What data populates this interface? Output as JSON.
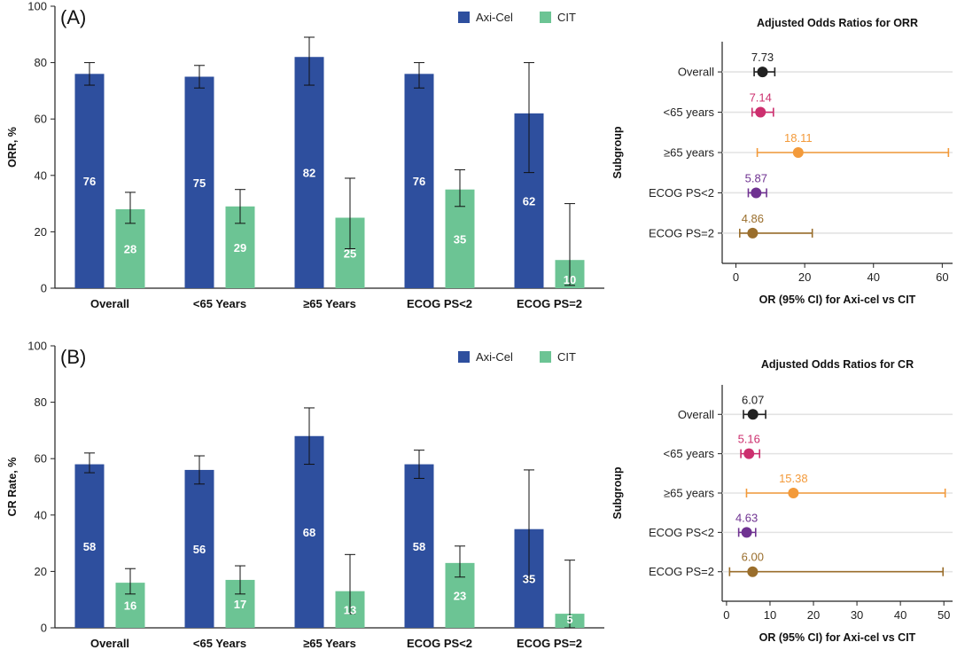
{
  "colors": {
    "axicel": "#2e4f9e",
    "cit": "#6cc494",
    "subgroups": [
      "#222222",
      "#cc2f6e",
      "#f39a3a",
      "#6f3291",
      "#9a6e2c"
    ]
  },
  "chart_data": [
    {
      "type": "bar",
      "panel_label": "(A)",
      "ylabel": "ORR, %",
      "ylim": [
        0,
        100
      ],
      "yticks": [
        0,
        20,
        40,
        60,
        80,
        100
      ],
      "categories": [
        "Overall",
        "<65 Years",
        "≥65 Years",
        "ECOG PS<2",
        "ECOG PS=2"
      ],
      "series": [
        {
          "name": "Axi-Cel",
          "values": [
            76,
            75,
            82,
            76,
            62
          ],
          "ci_low": [
            72,
            71,
            72,
            71,
            41
          ],
          "ci_high": [
            80,
            79,
            89,
            80,
            80
          ]
        },
        {
          "name": "CIT",
          "values": [
            28,
            29,
            25,
            35,
            10
          ],
          "ci_low": [
            23,
            23,
            14,
            29,
            1
          ],
          "ci_high": [
            34,
            35,
            39,
            42,
            30
          ]
        }
      ],
      "legend": "top-right"
    },
    {
      "type": "scatter",
      "title": "Adjusted Odds Ratios for ORR",
      "xlabel": "OR (95% CI) for Axi-cel vs CIT",
      "ylabel": "Subgroup",
      "xlim": [
        -4,
        63
      ],
      "xticks": [
        0,
        20,
        40,
        60
      ],
      "categories": [
        "Overall",
        "<65 years",
        "≥65 years",
        "ECOG PS<2",
        "ECOG PS=2"
      ],
      "values": [
        7.73,
        7.14,
        18.11,
        5.87,
        4.86
      ],
      "value_labels": [
        "7.73",
        "7.14",
        "18.11",
        "5.87",
        "4.86"
      ],
      "ci_low": [
        5.3,
        4.7,
        6.2,
        3.6,
        1.1
      ],
      "ci_high": [
        11.3,
        10.9,
        61.8,
        8.9,
        22.2
      ]
    },
    {
      "type": "bar",
      "panel_label": "(B)",
      "ylabel": "CR Rate, %",
      "ylim": [
        0,
        100
      ],
      "yticks": [
        0,
        20,
        40,
        60,
        80,
        100
      ],
      "categories": [
        "Overall",
        "<65 Years",
        "≥65 Years",
        "ECOG PS<2",
        "ECOG PS=2"
      ],
      "series": [
        {
          "name": "Axi-Cel",
          "values": [
            58,
            56,
            68,
            58,
            35
          ],
          "ci_low": [
            55,
            51,
            58,
            53,
            17
          ],
          "ci_high": [
            62,
            61,
            78,
            63,
            56
          ]
        },
        {
          "name": "CIT",
          "values": [
            16,
            17,
            13,
            23,
            5
          ],
          "ci_low": [
            12,
            12,
            5,
            18,
            0
          ],
          "ci_high": [
            21,
            22,
            26,
            29,
            24
          ]
        }
      ],
      "legend": "top-right"
    },
    {
      "type": "scatter",
      "title": "Adjusted Odds Ratios for CR",
      "xlabel": "OR (95% CI) for Axi-cel vs CIT",
      "ylabel": "Subgroup",
      "xlim": [
        -1,
        52
      ],
      "xticks": [
        0,
        10,
        20,
        30,
        40,
        50
      ],
      "categories": [
        "Overall",
        "<65 years",
        "≥65 years",
        "ECOG PS<2",
        "ECOG PS=2"
      ],
      "values": [
        6.07,
        5.16,
        15.38,
        4.63,
        6.0
      ],
      "value_labels": [
        "6.07",
        "5.16",
        "15.38",
        "4.63",
        "6.00"
      ],
      "ci_low": [
        3.9,
        3.3,
        4.6,
        2.8,
        0.7
      ],
      "ci_high": [
        9.0,
        7.6,
        50.3,
        6.7,
        49.8
      ]
    }
  ]
}
